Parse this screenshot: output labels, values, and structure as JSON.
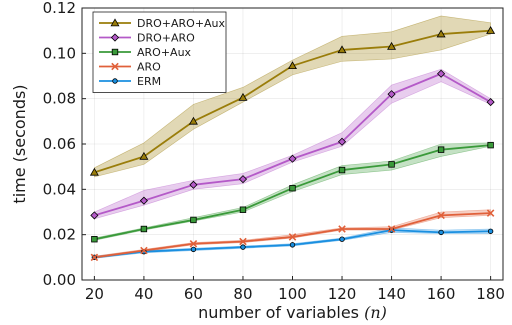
{
  "chart_data": {
    "type": "line",
    "title": "",
    "xlabel_prefix": "number of variables ",
    "xlabel_var": "(n)",
    "ylabel": "time (seconds)",
    "x": [
      20,
      40,
      60,
      80,
      100,
      120,
      140,
      160,
      180
    ],
    "xlim": [
      15,
      185
    ],
    "ylim": [
      0.0,
      0.12
    ],
    "xticks": [
      "20",
      "40",
      "60",
      "80",
      "100",
      "120",
      "140",
      "160",
      "180"
    ],
    "yticks": [
      "0.00",
      "0.02",
      "0.04",
      "0.06",
      "0.08",
      "0.10",
      "0.12"
    ],
    "xtick_values": [
      20,
      40,
      60,
      80,
      100,
      120,
      140,
      160,
      180
    ],
    "ytick_values": [
      0.0,
      0.02,
      0.04,
      0.06,
      0.08,
      0.1,
      0.12
    ],
    "grid": true,
    "legend_position": "top-left",
    "series": [
      {
        "name": "DRO+ARO+Aux",
        "color": "#9a7d0a",
        "marker": "triangle",
        "values": [
          0.0475,
          0.0545,
          0.07,
          0.0805,
          0.0945,
          0.1015,
          0.103,
          0.1085,
          0.11
        ],
        "lower": [
          0.0455,
          0.051,
          0.0665,
          0.0785,
          0.0905,
          0.0965,
          0.0975,
          0.1015,
          0.1085
        ],
        "upper": [
          0.0495,
          0.0605,
          0.0775,
          0.085,
          0.097,
          0.1075,
          0.1095,
          0.1165,
          0.1135
        ]
      },
      {
        "name": "DRO+ARO",
        "color": "#b45ac8",
        "marker": "diamond",
        "values": [
          0.0285,
          0.035,
          0.042,
          0.0445,
          0.0535,
          0.061,
          0.082,
          0.091,
          0.0785
        ],
        "lower": [
          0.027,
          0.033,
          0.04,
          0.0425,
          0.052,
          0.059,
          0.078,
          0.0875,
          0.0775
        ],
        "upper": [
          0.03,
          0.0395,
          0.044,
          0.047,
          0.055,
          0.065,
          0.086,
          0.093,
          0.08
        ]
      },
      {
        "name": "ARO+Aux",
        "color": "#3a9a3a",
        "marker": "square",
        "values": [
          0.018,
          0.0225,
          0.0265,
          0.031,
          0.0405,
          0.0485,
          0.051,
          0.0575,
          0.0595
        ],
        "lower": [
          0.0175,
          0.022,
          0.026,
          0.03,
          0.039,
          0.0465,
          0.0485,
          0.0545,
          0.059
        ],
        "upper": [
          0.0185,
          0.023,
          0.0275,
          0.032,
          0.042,
          0.0505,
          0.0525,
          0.06,
          0.0605
        ]
      },
      {
        "name": "ARO",
        "color": "#e0603a",
        "marker": "cross",
        "values": [
          0.01,
          0.013,
          0.016,
          0.017,
          0.019,
          0.0225,
          0.0225,
          0.0285,
          0.0295
        ],
        "lower": [
          0.0095,
          0.0125,
          0.0155,
          0.0165,
          0.0185,
          0.022,
          0.022,
          0.0275,
          0.0285
        ],
        "upper": [
          0.0105,
          0.0135,
          0.0165,
          0.0175,
          0.02,
          0.023,
          0.0235,
          0.03,
          0.031
        ]
      },
      {
        "name": "ERM",
        "color": "#1a8fe0",
        "marker": "circle",
        "values": [
          0.01,
          0.0125,
          0.0135,
          0.0145,
          0.0155,
          0.018,
          0.022,
          0.021,
          0.0215
        ],
        "lower": [
          0.0095,
          0.012,
          0.013,
          0.014,
          0.015,
          0.0175,
          0.021,
          0.0205,
          0.0205
        ],
        "upper": [
          0.0105,
          0.013,
          0.014,
          0.015,
          0.016,
          0.0185,
          0.023,
          0.022,
          0.0225
        ]
      }
    ]
  }
}
